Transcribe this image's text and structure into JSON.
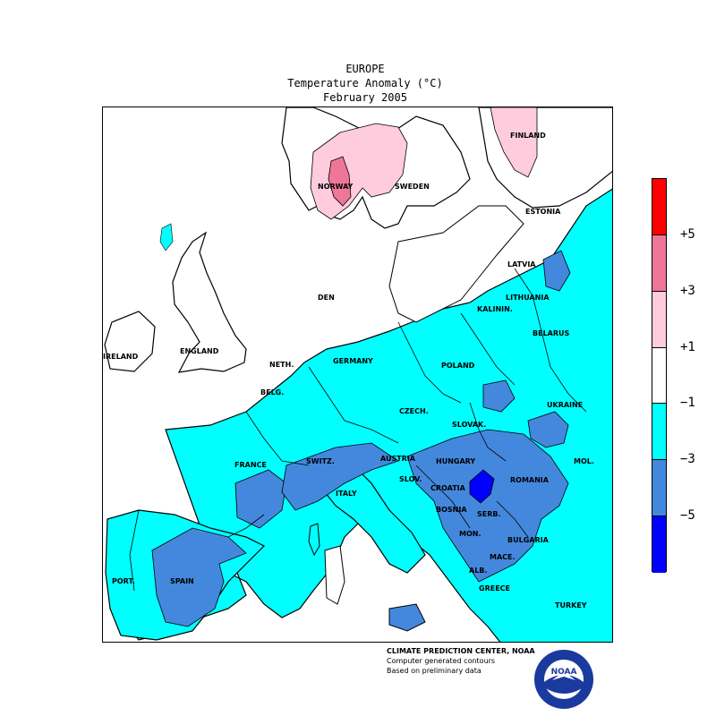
{
  "header": {
    "region": "EUROPE",
    "variable": "Temperature Anomaly (°C)",
    "period": "February 2005"
  },
  "map": {
    "countries": [
      {
        "name": "NORWAY"
      },
      {
        "name": "SWEDEN"
      },
      {
        "name": "FINLAND"
      },
      {
        "name": "ESTONIA"
      },
      {
        "name": "LATVIA"
      },
      {
        "name": "LITHUANIA"
      },
      {
        "name": "KALININ."
      },
      {
        "name": "BELARUS"
      },
      {
        "name": "DEN"
      },
      {
        "name": "IRELAND"
      },
      {
        "name": "ENGLAND"
      },
      {
        "name": "NETH."
      },
      {
        "name": "BELG."
      },
      {
        "name": "GERMANY"
      },
      {
        "name": "POLAND"
      },
      {
        "name": "CZECH."
      },
      {
        "name": "SLOVAK."
      },
      {
        "name": "UKRAINE"
      },
      {
        "name": "FRANCE"
      },
      {
        "name": "SWITZ."
      },
      {
        "name": "AUSTRIA"
      },
      {
        "name": "HUNGARY"
      },
      {
        "name": "MOL."
      },
      {
        "name": "ROMANIA"
      },
      {
        "name": "SLOV."
      },
      {
        "name": "CROATIA"
      },
      {
        "name": "ITALY"
      },
      {
        "name": "BOSNIA"
      },
      {
        "name": "SERB."
      },
      {
        "name": "MON."
      },
      {
        "name": "BULGARIA"
      },
      {
        "name": "MACE."
      },
      {
        "name": "ALB."
      },
      {
        "name": "GREECE"
      },
      {
        "name": "TURKEY"
      },
      {
        "name": "SPAIN"
      },
      {
        "name": "PORT."
      }
    ],
    "colors": {
      "sea": "#ffffff",
      "near_normal": "#ffffff",
      "cold_1_3": "#00ffff",
      "cold_3_5": "#4488dd",
      "cold_5_plus": "#0000ff",
      "warm_1_3": "#ffccdd",
      "warm_3_5": "#ee7799",
      "warm_5_plus": "#ff0000"
    }
  },
  "legend": {
    "segments": [
      {
        "color": "#ff0000"
      },
      {
        "color": "#ee7799"
      },
      {
        "color": "#ffccdd"
      },
      {
        "color": "#ffffff"
      },
      {
        "color": "#00ffff"
      },
      {
        "color": "#4488dd"
      },
      {
        "color": "#0000ff"
      }
    ],
    "labels": [
      "+5",
      "+3",
      "+1",
      "−1",
      "−3",
      "−5"
    ]
  },
  "credits": {
    "line1": "CLIMATE PREDICTION CENTER, NOAA",
    "line2": "Computer generated contours",
    "line3": "Based on preliminary data"
  },
  "logo": {
    "text": "NOAA",
    "icon": "noaa-logo-icon"
  }
}
